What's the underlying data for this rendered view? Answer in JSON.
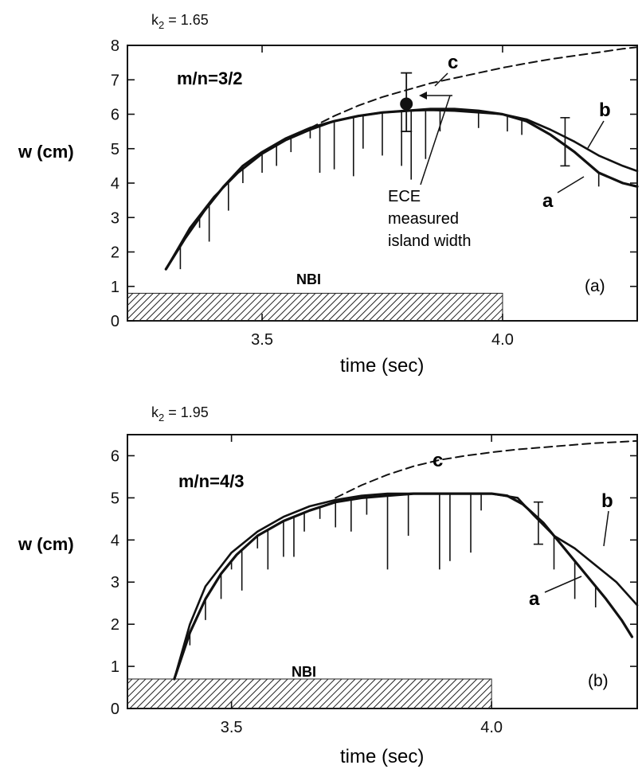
{
  "chart_data": [
    {
      "type": "line",
      "panel_label": "(a)",
      "header": "k",
      "header_sub": "2",
      "header_rest": " = 1.65",
      "mode_label": "m/n=3/2",
      "ylabel": "w (cm)",
      "xlabel": "time (sec)",
      "xlim": [
        3.22,
        4.28
      ],
      "ylim": [
        0,
        8
      ],
      "xticks": [
        3.5,
        4.0
      ],
      "xtick_labels": [
        "3.5",
        "4.0"
      ],
      "yticks": [
        0,
        1,
        2,
        3,
        4,
        5,
        6,
        7,
        8
      ],
      "ytick_labels": [
        "0",
        "1",
        "2",
        "3",
        "4",
        "5",
        "6",
        "7",
        "8"
      ],
      "nbi": {
        "label": "NBI",
        "start": 3.22,
        "end": 4.0,
        "height": 0.8
      },
      "annotation": [
        "ECE",
        "measured",
        "island width"
      ],
      "ece_point": {
        "x": 3.8,
        "y": 6.3,
        "err": [
          5.5,
          7.2
        ]
      },
      "error_bars": [
        {
          "x": 4.13,
          "low": 4.5,
          "high": 5.9
        }
      ],
      "series": [
        {
          "name": "a",
          "style": "measured",
          "x": [
            3.3,
            3.34,
            3.38,
            3.42,
            3.46,
            3.5,
            3.55,
            3.6,
            3.65,
            3.7,
            3.75,
            3.8,
            3.85,
            3.9,
            3.95,
            4.0,
            4.05,
            4.1,
            4.15,
            4.2,
            4.25,
            4.28
          ],
          "y": [
            1.5,
            2.4,
            3.2,
            3.9,
            4.5,
            4.9,
            5.3,
            5.6,
            5.8,
            5.95,
            6.05,
            6.1,
            6.15,
            6.15,
            6.1,
            6.0,
            5.8,
            5.4,
            4.9,
            4.3,
            4.0,
            3.9
          ],
          "dips": [
            [
              3.33,
              1.5
            ],
            [
              3.37,
              2.7
            ],
            [
              3.39,
              2.3
            ],
            [
              3.43,
              3.2
            ],
            [
              3.46,
              4.0
            ],
            [
              3.5,
              4.3
            ],
            [
              3.53,
              4.5
            ],
            [
              3.56,
              4.9
            ],
            [
              3.6,
              5.3
            ],
            [
              3.62,
              4.3
            ],
            [
              3.65,
              4.4
            ],
            [
              3.69,
              4.2
            ],
            [
              3.71,
              5.0
            ],
            [
              3.75,
              4.8
            ],
            [
              3.79,
              4.5
            ],
            [
              3.81,
              4.1
            ],
            [
              3.84,
              4.7
            ],
            [
              3.87,
              5.5
            ],
            [
              3.95,
              5.6
            ],
            [
              4.01,
              5.5
            ],
            [
              4.04,
              5.4
            ],
            [
              4.13,
              4.5
            ],
            [
              4.2,
              3.9
            ]
          ]
        },
        {
          "name": "b",
          "style": "solid",
          "x": [
            3.3,
            3.35,
            3.4,
            3.45,
            3.5,
            3.55,
            3.6,
            3.65,
            3.7,
            3.75,
            3.8,
            3.85,
            3.9,
            3.95,
            4.0,
            4.05,
            4.1,
            4.15,
            4.2,
            4.25,
            4.28
          ],
          "y": [
            1.5,
            2.7,
            3.6,
            4.3,
            4.85,
            5.25,
            5.55,
            5.8,
            5.95,
            6.05,
            6.1,
            6.12,
            6.1,
            6.05,
            6.0,
            5.85,
            5.55,
            5.2,
            4.8,
            4.5,
            4.35
          ]
        },
        {
          "name": "c",
          "style": "dashed",
          "x": [
            3.6,
            3.65,
            3.7,
            3.75,
            3.8,
            3.85,
            3.9,
            3.95,
            4.0,
            4.05,
            4.1,
            4.15,
            4.2,
            4.25,
            4.28
          ],
          "y": [
            5.6,
            5.95,
            6.25,
            6.5,
            6.7,
            6.9,
            7.05,
            7.2,
            7.35,
            7.48,
            7.6,
            7.7,
            7.8,
            7.9,
            7.95
          ]
        }
      ]
    },
    {
      "type": "line",
      "panel_label": "(b)",
      "header": "k",
      "header_sub": "2",
      "header_rest": " = 1.95",
      "mode_label": "m/n=4/3",
      "ylabel": "w (cm)",
      "xlabel": "time (sec)",
      "xlim": [
        3.3,
        4.28
      ],
      "ylim": [
        0,
        6.5
      ],
      "xticks": [
        3.5,
        4.0
      ],
      "xtick_labels": [
        "3.5",
        "4.0"
      ],
      "yticks": [
        0,
        1,
        2,
        3,
        4,
        5,
        6
      ],
      "ytick_labels": [
        "0",
        "1",
        "2",
        "3",
        "4",
        "5",
        "6"
      ],
      "nbi": {
        "label": "NBI",
        "start": 3.3,
        "end": 4.0,
        "height": 0.7
      },
      "error_bars": [
        {
          "x": 4.09,
          "low": 3.9,
          "high": 4.9
        }
      ],
      "series": [
        {
          "name": "a",
          "style": "measured",
          "x": [
            3.39,
            3.42,
            3.45,
            3.48,
            3.51,
            3.55,
            3.6,
            3.65,
            3.7,
            3.75,
            3.8,
            3.85,
            3.9,
            3.95,
            4.0,
            4.03,
            4.06,
            4.1,
            4.14,
            4.18,
            4.22,
            4.25,
            4.27
          ],
          "y": [
            0.7,
            1.8,
            2.6,
            3.2,
            3.65,
            4.1,
            4.45,
            4.7,
            4.9,
            5.0,
            5.05,
            5.1,
            5.1,
            5.1,
            5.1,
            5.05,
            4.85,
            4.4,
            3.8,
            3.2,
            2.6,
            2.1,
            1.7
          ],
          "dips": [
            [
              3.42,
              1.5
            ],
            [
              3.45,
              2.1
            ],
            [
              3.48,
              2.6
            ],
            [
              3.5,
              3.3
            ],
            [
              3.52,
              2.8
            ],
            [
              3.55,
              3.8
            ],
            [
              3.57,
              3.3
            ],
            [
              3.6,
              3.6
            ],
            [
              3.62,
              3.6
            ],
            [
              3.64,
              4.2
            ],
            [
              3.67,
              4.5
            ],
            [
              3.7,
              4.3
            ],
            [
              3.73,
              4.2
            ],
            [
              3.76,
              4.6
            ],
            [
              3.8,
              3.3
            ],
            [
              3.84,
              4.1
            ],
            [
              3.9,
              3.3
            ],
            [
              3.92,
              3.5
            ],
            [
              3.96,
              3.7
            ],
            [
              3.98,
              4.7
            ],
            [
              4.12,
              3.3
            ],
            [
              4.16,
              2.6
            ],
            [
              4.2,
              2.4
            ]
          ]
        },
        {
          "name": "b",
          "style": "solid",
          "x": [
            3.39,
            3.42,
            3.45,
            3.5,
            3.55,
            3.6,
            3.65,
            3.7,
            3.75,
            3.8,
            3.85,
            3.9,
            3.95,
            4.0,
            4.05,
            4.08,
            4.12,
            4.16,
            4.2,
            4.24,
            4.28
          ],
          "y": [
            0.7,
            2.0,
            2.9,
            3.7,
            4.2,
            4.55,
            4.8,
            4.95,
            5.05,
            5.1,
            5.1,
            5.1,
            5.1,
            5.1,
            5.0,
            4.6,
            4.1,
            3.8,
            3.4,
            3.0,
            2.45
          ]
        },
        {
          "name": "c",
          "style": "dashed",
          "x": [
            3.7,
            3.75,
            3.8,
            3.85,
            3.9,
            3.95,
            4.0,
            4.05,
            4.1,
            4.15,
            4.2,
            4.25,
            4.28
          ],
          "y": [
            5.0,
            5.3,
            5.55,
            5.75,
            5.9,
            6.0,
            6.08,
            6.15,
            6.2,
            6.25,
            6.3,
            6.33,
            6.35
          ]
        }
      ]
    }
  ]
}
